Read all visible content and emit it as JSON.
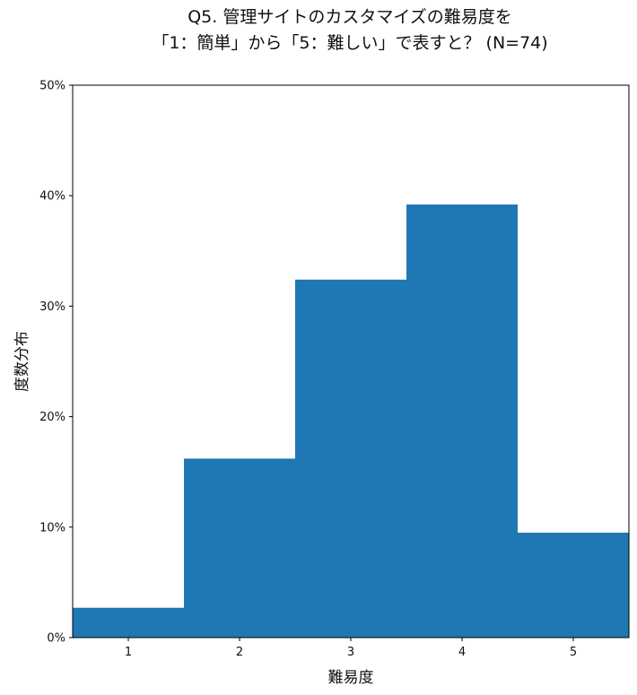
{
  "chart_data": {
    "type": "bar",
    "title_lines": [
      "Q5. 管理サイトのカスタマイズの難易度を",
      "「1：簡単」から「5：難しい」で表すと？ (N=74)"
    ],
    "xlabel": "難易度",
    "ylabel": "度数分布",
    "categories": [
      "1",
      "2",
      "3",
      "4",
      "5"
    ],
    "values": [
      2.7,
      16.2,
      32.4,
      39.2,
      9.5
    ],
    "unit": "%",
    "ylim": [
      0,
      50
    ],
    "yticks": [
      0,
      10,
      20,
      30,
      40,
      50
    ],
    "ytick_labels": [
      "0%",
      "10%",
      "20%",
      "30%",
      "40%",
      "50%"
    ],
    "bar_color": "#1f77b4",
    "grid": false,
    "legend": "none"
  }
}
